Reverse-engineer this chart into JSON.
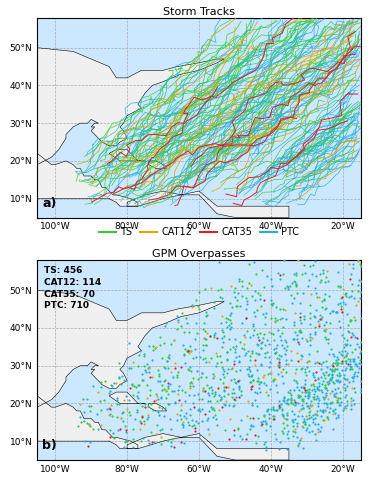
{
  "title_top": "Storm Tracks",
  "title_bottom": "GPM Overpasses",
  "label_a": "a)",
  "label_b": "b)",
  "lon_min": -105,
  "lon_max": -15,
  "lat_min": 5,
  "lat_max": 58,
  "xticks": [
    -100,
    -80,
    -60,
    -40,
    -20
  ],
  "yticks": [
    10,
    20,
    30,
    40,
    50
  ],
  "xtick_labels": [
    "100°W",
    "80°W",
    "60°W",
    "40°W",
    "20°W"
  ],
  "ytick_labels": [
    "10°N",
    "20°N",
    "30°N",
    "40°N",
    "50°N"
  ],
  "color_TS": "#33cc33",
  "color_CAT12": "#ddaa00",
  "color_CAT35": "#dd2222",
  "color_PTC": "#22aaee",
  "counts": {
    "TS": 456,
    "CAT12": 114,
    "CAT35": 70,
    "PTC": 710
  },
  "background_color": "#cce8ff",
  "land_color": "#f0f0f0",
  "grid_color": "#aaaaaa",
  "seed": 42,
  "n_tracks_TS": 55,
  "n_tracks_CAT12": 18,
  "n_tracks_CAT35": 8,
  "n_tracks_PTC": 75
}
